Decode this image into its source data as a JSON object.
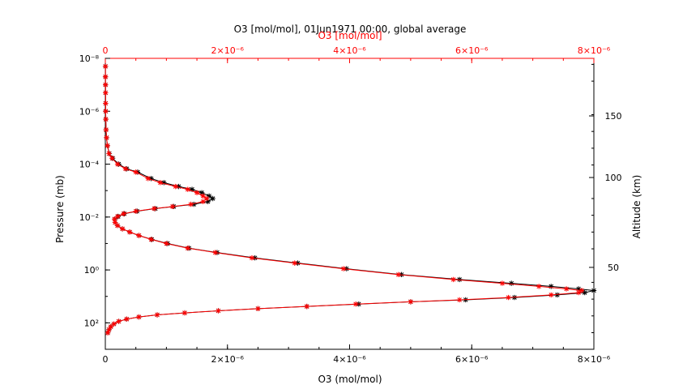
{
  "chart_data": {
    "type": "line",
    "title": "O3 [mol/mol], 01Jun1971 00:00, global average",
    "xlabel": "O3 (mol/mol)",
    "xlabel_top": "O3 [mol/mol]",
    "ylabel": "Pressure (mb)",
    "ylabel_right": "Altitude (km)",
    "xlim": [
      0,
      8e-06
    ],
    "ylim": [
      1000,
      1e-08
    ],
    "yscale": "log",
    "x_ticks": [
      {
        "value": 0,
        "label": "0"
      },
      {
        "value": 2e-06,
        "label": "2×10⁻⁶"
      },
      {
        "value": 4e-06,
        "label": "4×10⁻⁶"
      },
      {
        "value": 6e-06,
        "label": "6×10⁻⁶"
      },
      {
        "value": 8e-06,
        "label": "8×10⁻⁶"
      }
    ],
    "y_ticks": [
      {
        "value": 100,
        "label": "10²"
      },
      {
        "value": 1,
        "label": "10⁰"
      },
      {
        "value": 0.01,
        "label": "10⁻²"
      },
      {
        "value": 0.0001,
        "label": "10⁻⁴"
      },
      {
        "value": 1e-06,
        "label": "10⁻⁶"
      },
      {
        "value": 1e-08,
        "label": "10⁻⁸"
      }
    ],
    "altitude_ticks": [
      {
        "value": 50,
        "pressure": 0.8,
        "label": "50"
      },
      {
        "value": 100,
        "pressure": 0.00032,
        "label": "100"
      },
      {
        "value": 150,
        "pressure": 1.5e-06,
        "label": "150"
      }
    ],
    "colors": {
      "series_red": "#ff0000",
      "series_black": "#000000",
      "axis_top": "#ff0000"
    },
    "series": [
      {
        "color": "#ff0000",
        "x": [
          2e-09,
          2e-09,
          3e-09,
          4e-09,
          5e-09,
          6e-09,
          8e-09,
          1.2e-08,
          2e-08,
          3.5e-08,
          6e-08,
          1.1e-07,
          2e-07,
          3.3e-07,
          5e-07,
          7e-07,
          9e-07,
          1.15e-06,
          1.35e-06,
          1.5e-06,
          1.6e-06,
          1.66e-06,
          1.6e-06,
          1.4e-06,
          1.1e-06,
          8e-07,
          5e-07,
          3e-07,
          2e-07,
          1.5e-07,
          1.6e-07,
          2e-07,
          2.8e-07,
          4e-07,
          5.5e-07,
          7.5e-07,
          1e-06,
          1.35e-06,
          1.8e-06,
          2.4e-06,
          3.1e-06,
          3.9e-06,
          4.8e-06,
          5.7e-06,
          6.5e-06,
          7.1e-06,
          7.55e-06,
          7.8e-06,
          7.75e-06,
          7.3e-06,
          6.6e-06,
          5.8e-06,
          5e-06,
          4.1e-06,
          3.3e-06,
          2.5e-06,
          1.85e-06,
          1.3e-06,
          8.5e-07,
          5.5e-07,
          3.5e-07,
          2.2e-07,
          1.4e-07,
          9e-08,
          6e-08,
          4e-08
        ],
        "y": [
          2e-08,
          5e-08,
          1e-07,
          2e-07,
          5e-07,
          1e-06,
          2e-06,
          5e-06,
          1e-05,
          2e-05,
          4e-05,
          6e-05,
          0.0001,
          0.00015,
          0.0002,
          0.00035,
          0.0005,
          0.0007,
          0.0009,
          0.0012,
          0.0016,
          0.002,
          0.0026,
          0.0033,
          0.004,
          0.0048,
          0.006,
          0.0075,
          0.0095,
          0.012,
          0.016,
          0.021,
          0.028,
          0.037,
          0.05,
          0.07,
          0.1,
          0.15,
          0.22,
          0.35,
          0.55,
          0.9,
          1.5,
          2.3,
          3.2,
          4.2,
          5.2,
          6.0,
          7.2,
          8.8,
          11,
          13.5,
          16,
          19.5,
          24,
          29,
          35,
          42,
          50,
          60,
          72,
          88,
          110,
          140,
          180,
          240
        ]
      },
      {
        "color": "#000000",
        "x": [
          2e-09,
          2e-09,
          3e-09,
          4e-09,
          5e-09,
          6e-09,
          8e-09,
          1.2e-08,
          2e-08,
          3.5e-08,
          6.5e-08,
          1.2e-07,
          2.2e-07,
          3.5e-07,
          5.3e-07,
          7.5e-07,
          9.6e-07,
          1.2e-06,
          1.42e-06,
          1.58e-06,
          1.7e-06,
          1.76e-06,
          1.68e-06,
          1.45e-06,
          1.12e-06,
          8.2e-07,
          5.2e-07,
          3.1e-07,
          2.1e-07,
          1.55e-07,
          1.6e-07,
          2e-07,
          2.8e-07,
          4e-07,
          5.5e-07,
          7.6e-07,
          1.02e-06,
          1.37e-06,
          1.83e-06,
          2.45e-06,
          3.15e-06,
          3.95e-06,
          4.85e-06,
          5.8e-06,
          6.65e-06,
          7.3e-06,
          7.75e-06,
          8e-06,
          7.85e-06,
          7.4e-06,
          6.7e-06,
          5.9e-06,
          5e-06,
          4.15e-06,
          3.3e-06,
          2.5e-06,
          1.85e-06,
          1.3e-06,
          8.5e-07,
          5.5e-07,
          3.5e-07,
          2.2e-07,
          1.4e-07,
          9e-08,
          6e-08,
          4e-08
        ],
        "y": [
          2e-08,
          5e-08,
          1e-07,
          2e-07,
          5e-07,
          1e-06,
          2e-06,
          5e-06,
          1e-05,
          2e-05,
          4e-05,
          6e-05,
          0.0001,
          0.00015,
          0.0002,
          0.00035,
          0.0005,
          0.0007,
          0.0009,
          0.0012,
          0.0016,
          0.002,
          0.0026,
          0.0033,
          0.004,
          0.0048,
          0.006,
          0.0075,
          0.0095,
          0.012,
          0.016,
          0.021,
          0.028,
          0.037,
          0.05,
          0.07,
          0.1,
          0.15,
          0.22,
          0.35,
          0.55,
          0.9,
          1.5,
          2.3,
          3.2,
          4.2,
          5.2,
          6.0,
          7.2,
          8.8,
          11,
          13.5,
          16,
          19.5,
          24,
          29,
          35,
          42,
          50,
          60,
          72,
          88,
          110,
          140,
          180,
          240
        ]
      }
    ]
  }
}
